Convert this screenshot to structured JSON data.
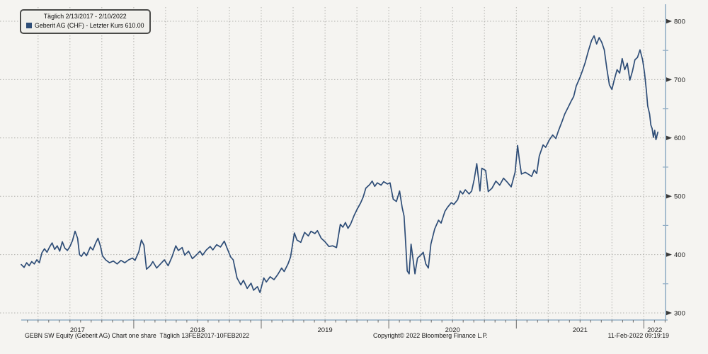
{
  "legend": {
    "period_label": "Täglich 2/13/2017 - 2/10/2022",
    "series_label": "Geberit AG (CHF) - Letzter Kurs 610.00",
    "swatch_color": "#2e4d77"
  },
  "footer": {
    "left": "GEBN SW Equity (Geberit AG) Chart one share  Täglich 13FEB2017-10FEB2022",
    "center": "Copyright© 2022 Bloomberg Finance L.P.",
    "right": "11-Feb-2022 09:19:19"
  },
  "colors": {
    "line": "#2e4d77",
    "grid": "#b3b2ae",
    "axis": "#93aec5",
    "tick": "#6b6b6b",
    "arrow": "#3a3a3a",
    "text": "#1f1f1f",
    "background": "#f5f4f1"
  },
  "chart_data": {
    "type": "line",
    "title": "Geberit AG (CHF) daily close",
    "xlabel": "",
    "ylabel": "",
    "ylim": [
      288,
      827
    ],
    "x_domain": [
      2017.118,
      2022.17
    ],
    "grid": "dotted, horizontal every 100 CHF, vertical quarterly",
    "legend_position": "top-left",
    "y_axis": {
      "major_ticks": [
        800,
        700,
        600,
        500,
        400,
        300
      ],
      "minor_ticks": [
        750,
        650,
        550,
        450,
        350
      ]
    },
    "x_axis": {
      "years": [
        2017,
        2018,
        2019,
        2020,
        2021,
        2022
      ]
    },
    "series": [
      {
        "name": "Geberit AG (CHF)",
        "last_price": 610.0,
        "points": [
          [
            2017.118,
            383
          ],
          [
            2017.14,
            378
          ],
          [
            2017.16,
            386
          ],
          [
            2017.18,
            381
          ],
          [
            2017.2,
            388
          ],
          [
            2017.22,
            384
          ],
          [
            2017.24,
            391
          ],
          [
            2017.26,
            386
          ],
          [
            2017.28,
            403
          ],
          [
            2017.3,
            410
          ],
          [
            2017.32,
            404
          ],
          [
            2017.34,
            413
          ],
          [
            2017.36,
            420
          ],
          [
            2017.38,
            409
          ],
          [
            2017.4,
            415
          ],
          [
            2017.42,
            406
          ],
          [
            2017.44,
            422
          ],
          [
            2017.46,
            411
          ],
          [
            2017.48,
            407
          ],
          [
            2017.5,
            414
          ],
          [
            2017.52,
            424
          ],
          [
            2017.54,
            440
          ],
          [
            2017.56,
            428
          ],
          [
            2017.575,
            400
          ],
          [
            2017.59,
            397
          ],
          [
            2017.61,
            404
          ],
          [
            2017.63,
            398
          ],
          [
            2017.66,
            413
          ],
          [
            2017.68,
            408
          ],
          [
            2017.7,
            419
          ],
          [
            2017.72,
            428
          ],
          [
            2017.74,
            414
          ],
          [
            2017.755,
            398
          ],
          [
            2017.78,
            391
          ],
          [
            2017.81,
            386
          ],
          [
            2017.84,
            389
          ],
          [
            2017.87,
            384
          ],
          [
            2017.9,
            390
          ],
          [
            2017.93,
            386
          ],
          [
            2017.96,
            391
          ],
          [
            2017.99,
            394
          ],
          [
            2018.01,
            390
          ],
          [
            2018.04,
            405
          ],
          [
            2018.06,
            425
          ],
          [
            2018.08,
            416
          ],
          [
            2018.1,
            375
          ],
          [
            2018.13,
            381
          ],
          [
            2018.15,
            388
          ],
          [
            2018.18,
            377
          ],
          [
            2018.21,
            384
          ],
          [
            2018.24,
            391
          ],
          [
            2018.27,
            381
          ],
          [
            2018.3,
            396
          ],
          [
            2018.33,
            415
          ],
          [
            2018.35,
            407
          ],
          [
            2018.38,
            412
          ],
          [
            2018.4,
            399
          ],
          [
            2018.43,
            406
          ],
          [
            2018.46,
            393
          ],
          [
            2018.49,
            399
          ],
          [
            2018.52,
            406
          ],
          [
            2018.54,
            399
          ],
          [
            2018.57,
            408
          ],
          [
            2018.6,
            414
          ],
          [
            2018.62,
            408
          ],
          [
            2018.65,
            417
          ],
          [
            2018.68,
            413
          ],
          [
            2018.71,
            423
          ],
          [
            2018.73,
            412
          ],
          [
            2018.76,
            396
          ],
          [
            2018.78,
            391
          ],
          [
            2018.81,
            360
          ],
          [
            2018.84,
            348
          ],
          [
            2018.86,
            356
          ],
          [
            2018.89,
            342
          ],
          [
            2018.92,
            351
          ],
          [
            2018.94,
            339
          ],
          [
            2018.97,
            345
          ],
          [
            2018.99,
            335
          ],
          [
            2019.02,
            360
          ],
          [
            2019.04,
            353
          ],
          [
            2019.07,
            362
          ],
          [
            2019.1,
            357
          ],
          [
            2019.13,
            366
          ],
          [
            2019.16,
            377
          ],
          [
            2019.18,
            371
          ],
          [
            2019.21,
            384
          ],
          [
            2019.23,
            396
          ],
          [
            2019.26,
            437
          ],
          [
            2019.28,
            425
          ],
          [
            2019.31,
            421
          ],
          [
            2019.34,
            438
          ],
          [
            2019.37,
            432
          ],
          [
            2019.39,
            440
          ],
          [
            2019.42,
            436
          ],
          [
            2019.44,
            441
          ],
          [
            2019.47,
            428
          ],
          [
            2019.5,
            422
          ],
          [
            2019.53,
            414
          ],
          [
            2019.56,
            415
          ],
          [
            2019.59,
            412
          ],
          [
            2019.62,
            452
          ],
          [
            2019.64,
            447
          ],
          [
            2019.66,
            455
          ],
          [
            2019.68,
            445
          ],
          [
            2019.7,
            452
          ],
          [
            2019.73,
            468
          ],
          [
            2019.75,
            477
          ],
          [
            2019.78,
            489
          ],
          [
            2019.8,
            499
          ],
          [
            2019.82,
            514
          ],
          [
            2019.85,
            520
          ],
          [
            2019.87,
            526
          ],
          [
            2019.89,
            517
          ],
          [
            2019.91,
            523
          ],
          [
            2019.94,
            519
          ],
          [
            2019.96,
            525
          ],
          [
            2019.99,
            521
          ],
          [
            2020.01,
            523
          ],
          [
            2020.035,
            495
          ],
          [
            2020.06,
            491
          ],
          [
            2020.085,
            509
          ],
          [
            2020.105,
            481
          ],
          [
            2020.12,
            466
          ],
          [
            2020.13,
            430
          ],
          [
            2020.145,
            372
          ],
          [
            2020.16,
            367
          ],
          [
            2020.175,
            418
          ],
          [
            2020.19,
            393
          ],
          [
            2020.205,
            367
          ],
          [
            2020.225,
            394
          ],
          [
            2020.25,
            399
          ],
          [
            2020.27,
            404
          ],
          [
            2020.29,
            384
          ],
          [
            2020.31,
            377
          ],
          [
            2020.33,
            418
          ],
          [
            2020.36,
            444
          ],
          [
            2020.39,
            459
          ],
          [
            2020.41,
            454
          ],
          [
            2020.44,
            474
          ],
          [
            2020.46,
            481
          ],
          [
            2020.49,
            489
          ],
          [
            2020.51,
            486
          ],
          [
            2020.54,
            494
          ],
          [
            2020.56,
            509
          ],
          [
            2020.58,
            504
          ],
          [
            2020.6,
            511
          ],
          [
            2020.63,
            504
          ],
          [
            2020.65,
            509
          ],
          [
            2020.67,
            529
          ],
          [
            2020.69,
            556
          ],
          [
            2020.715,
            509
          ],
          [
            2020.73,
            548
          ],
          [
            2020.76,
            544
          ],
          [
            2020.78,
            508
          ],
          [
            2020.81,
            514
          ],
          [
            2020.84,
            526
          ],
          [
            2020.87,
            519
          ],
          [
            2020.9,
            531
          ],
          [
            2020.93,
            524
          ],
          [
            2020.96,
            516
          ],
          [
            2020.99,
            541
          ],
          [
            2021.01,
            587
          ],
          [
            2021.025,
            560
          ],
          [
            2021.04,
            538
          ],
          [
            2021.07,
            541
          ],
          [
            2021.1,
            537
          ],
          [
            2021.12,
            534
          ],
          [
            2021.14,
            545
          ],
          [
            2021.16,
            539
          ],
          [
            2021.18,
            569
          ],
          [
            2021.21,
            588
          ],
          [
            2021.23,
            584
          ],
          [
            2021.26,
            597
          ],
          [
            2021.285,
            605
          ],
          [
            2021.31,
            599
          ],
          [
            2021.33,
            612
          ],
          [
            2021.36,
            629
          ],
          [
            2021.38,
            641
          ],
          [
            2021.41,
            654
          ],
          [
            2021.43,
            663
          ],
          [
            2021.45,
            671
          ],
          [
            2021.47,
            689
          ],
          [
            2021.5,
            704
          ],
          [
            2021.52,
            716
          ],
          [
            2021.54,
            729
          ],
          [
            2021.565,
            749
          ],
          [
            2021.59,
            767
          ],
          [
            2021.61,
            775
          ],
          [
            2021.63,
            761
          ],
          [
            2021.65,
            772
          ],
          [
            2021.67,
            764
          ],
          [
            2021.69,
            751
          ],
          [
            2021.71,
            719
          ],
          [
            2021.73,
            691
          ],
          [
            2021.75,
            683
          ],
          [
            2021.77,
            701
          ],
          [
            2021.79,
            717
          ],
          [
            2021.81,
            711
          ],
          [
            2021.83,
            736
          ],
          [
            2021.85,
            717
          ],
          [
            2021.87,
            728
          ],
          [
            2021.89,
            699
          ],
          [
            2021.91,
            714
          ],
          [
            2021.93,
            734
          ],
          [
            2021.95,
            738
          ],
          [
            2021.97,
            751
          ],
          [
            2021.99,
            734
          ],
          [
            2022.005,
            712
          ],
          [
            2022.02,
            681
          ],
          [
            2022.03,
            655
          ],
          [
            2022.045,
            641
          ],
          [
            2022.055,
            622
          ],
          [
            2022.065,
            616
          ],
          [
            2022.075,
            601
          ],
          [
            2022.085,
            613
          ],
          [
            2022.095,
            597
          ],
          [
            2022.11,
            610
          ]
        ]
      }
    ]
  }
}
